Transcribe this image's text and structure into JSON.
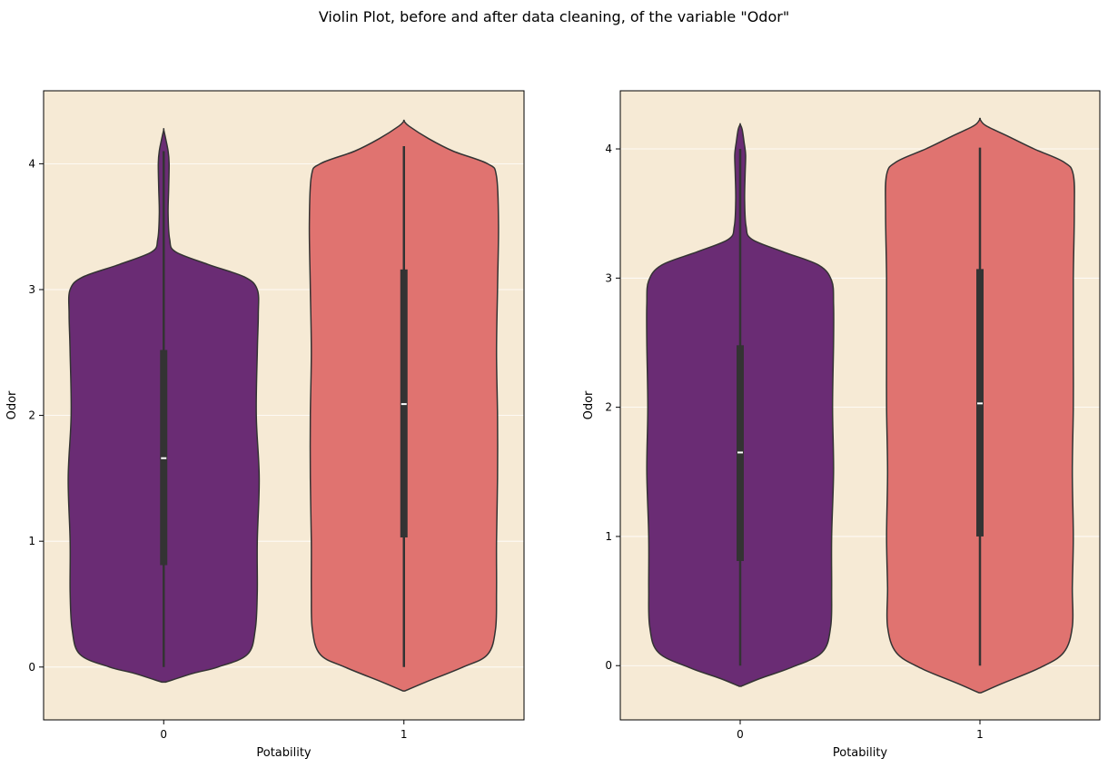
{
  "figure": {
    "title": "Violin Plot, before and after data cleaning, of the variable \"Odor\""
  },
  "colors": {
    "background": "#f6ead5",
    "violin_0": "#6a2c74",
    "violin_1": "#e07370",
    "outline": "#333333",
    "grid": "#ffffff"
  },
  "chart_data": [
    {
      "type": "violin",
      "title": "",
      "xlabel": "Potability",
      "ylabel": "Odor",
      "categories": [
        "0",
        "1"
      ],
      "yticks": [
        0,
        1,
        2,
        3,
        4
      ],
      "ylim": [
        -0.42,
        4.58
      ],
      "grid": "y",
      "violins": [
        {
          "category": "0",
          "median": 1.66,
          "q1": 0.81,
          "q3": 2.52,
          "whisker_low": 0.0,
          "whisker_high": 4.1,
          "profile": [
            [
              -0.12,
              0.02
            ],
            [
              -0.05,
              0.3
            ],
            [
              0.0,
              0.55
            ],
            [
              0.1,
              0.85
            ],
            [
              0.3,
              0.93
            ],
            [
              0.6,
              0.95
            ],
            [
              1.0,
              0.95
            ],
            [
              1.5,
              0.97
            ],
            [
              2.0,
              0.94
            ],
            [
              2.5,
              0.95
            ],
            [
              2.8,
              0.96
            ],
            [
              3.0,
              0.95
            ],
            [
              3.1,
              0.82
            ],
            [
              3.2,
              0.45
            ],
            [
              3.3,
              0.12
            ],
            [
              3.4,
              0.06
            ],
            [
              3.6,
              0.045
            ],
            [
              3.8,
              0.05
            ],
            [
              4.0,
              0.055
            ],
            [
              4.1,
              0.045
            ],
            [
              4.2,
              0.02
            ],
            [
              4.27,
              0.0
            ]
          ]
        },
        {
          "category": "1",
          "median": 2.09,
          "q1": 1.03,
          "q3": 3.16,
          "whisker_low": 0.0,
          "whisker_high": 4.14,
          "profile": [
            [
              -0.19,
              0.01
            ],
            [
              -0.12,
              0.22
            ],
            [
              0.0,
              0.6
            ],
            [
              0.1,
              0.85
            ],
            [
              0.3,
              0.93
            ],
            [
              0.6,
              0.94
            ],
            [
              1.0,
              0.94
            ],
            [
              1.5,
              0.95
            ],
            [
              2.0,
              0.95
            ],
            [
              2.5,
              0.94
            ],
            [
              3.0,
              0.95
            ],
            [
              3.5,
              0.96
            ],
            [
              3.9,
              0.94
            ],
            [
              4.0,
              0.85
            ],
            [
              4.1,
              0.5
            ],
            [
              4.2,
              0.25
            ],
            [
              4.3,
              0.05
            ],
            [
              4.34,
              0.0
            ]
          ]
        }
      ]
    },
    {
      "type": "violin",
      "title": "",
      "xlabel": "Potability",
      "ylabel": "Odor",
      "categories": [
        "0",
        "1"
      ],
      "yticks": [
        0,
        1,
        2,
        3,
        4
      ],
      "ylim": [
        -0.42,
        4.45
      ],
      "grid": "y",
      "violins": [
        {
          "category": "0",
          "median": 1.65,
          "q1": 0.81,
          "q3": 2.48,
          "whisker_low": 0.0,
          "whisker_high": 4.0,
          "profile": [
            [
              -0.16,
              0.01
            ],
            [
              -0.1,
              0.2
            ],
            [
              -0.02,
              0.5
            ],
            [
              0.1,
              0.83
            ],
            [
              0.3,
              0.92
            ],
            [
              0.6,
              0.93
            ],
            [
              1.0,
              0.93
            ],
            [
              1.5,
              0.95
            ],
            [
              2.0,
              0.94
            ],
            [
              2.5,
              0.95
            ],
            [
              2.8,
              0.95
            ],
            [
              2.98,
              0.93
            ],
            [
              3.1,
              0.8
            ],
            [
              3.2,
              0.45
            ],
            [
              3.3,
              0.12
            ],
            [
              3.4,
              0.06
            ],
            [
              3.6,
              0.045
            ],
            [
              3.8,
              0.05
            ],
            [
              3.95,
              0.055
            ],
            [
              4.05,
              0.04
            ],
            [
              4.15,
              0.02
            ],
            [
              4.19,
              0.0
            ]
          ]
        },
        {
          "category": "1",
          "median": 2.03,
          "q1": 1.0,
          "q3": 3.07,
          "whisker_low": 0.0,
          "whisker_high": 4.01,
          "profile": [
            [
              -0.21,
              0.01
            ],
            [
              -0.14,
              0.22
            ],
            [
              -0.02,
              0.6
            ],
            [
              0.1,
              0.85
            ],
            [
              0.3,
              0.94
            ],
            [
              0.6,
              0.94
            ],
            [
              1.0,
              0.95
            ],
            [
              1.5,
              0.94
            ],
            [
              2.0,
              0.95
            ],
            [
              2.5,
              0.95
            ],
            [
              3.0,
              0.95
            ],
            [
              3.5,
              0.96
            ],
            [
              3.8,
              0.95
            ],
            [
              3.9,
              0.85
            ],
            [
              4.0,
              0.55
            ],
            [
              4.1,
              0.28
            ],
            [
              4.18,
              0.06
            ],
            [
              4.23,
              0.0
            ]
          ]
        }
      ]
    }
  ]
}
